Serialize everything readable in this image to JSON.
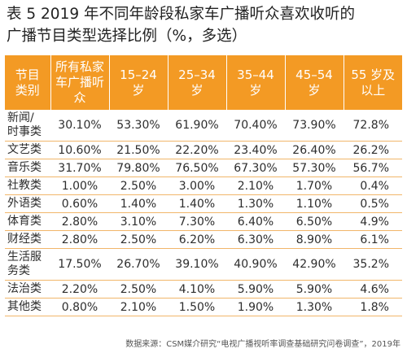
{
  "title": {
    "line1": "表 5  2019 年不同年龄段私家车广播听众喜欢收听的",
    "line2": "广播节目类型选择比例（%，多选）"
  },
  "table": {
    "headers": [
      [
        "节目",
        "类别"
      ],
      [
        "所有私家",
        "车广播听",
        "众"
      ],
      [
        "15–24",
        "岁"
      ],
      [
        "25–34",
        "岁"
      ],
      [
        "35–44",
        "岁"
      ],
      [
        "45–54",
        "岁"
      ],
      [
        "55 岁及",
        "以上"
      ]
    ],
    "rows": [
      {
        "category": [
          "新闻/",
          "时事类"
        ],
        "values": [
          "30.10%",
          "53.30%",
          "61.90%",
          "70.40%",
          "73.90%",
          "72.8%"
        ]
      },
      {
        "category": [
          "文艺类"
        ],
        "values": [
          "10.60%",
          "21.50%",
          "22.20%",
          "23.40%",
          "26.40%",
          "26.2%"
        ]
      },
      {
        "category": [
          "音乐类"
        ],
        "values": [
          "31.70%",
          "79.80%",
          "76.50%",
          "67.30%",
          "57.30%",
          "56.7%"
        ]
      },
      {
        "category": [
          "社教类"
        ],
        "values": [
          "1.00%",
          "2.50%",
          "3.00%",
          "2.10%",
          "1.70%",
          "0.4%"
        ]
      },
      {
        "category": [
          "外语类"
        ],
        "values": [
          "0.60%",
          "1.40%",
          "1.40%",
          "1.30%",
          "1.10%",
          "0.5%"
        ]
      },
      {
        "category": [
          "体育类"
        ],
        "values": [
          "2.80%",
          "3.10%",
          "7.30%",
          "6.40%",
          "6.50%",
          "4.9%"
        ]
      },
      {
        "category": [
          "财经类"
        ],
        "values": [
          "2.80%",
          "2.50%",
          "6.20%",
          "6.30%",
          "8.90%",
          "6.1%"
        ]
      },
      {
        "category": [
          "生活服",
          "务类"
        ],
        "values": [
          "17.50%",
          "26.70%",
          "39.10%",
          "40.90%",
          "42.90%",
          "35.2%"
        ]
      },
      {
        "category": [
          "法治类"
        ],
        "values": [
          "2.20%",
          "2.50%",
          "4.10%",
          "5.90%",
          "5.90%",
          "4.6%"
        ]
      },
      {
        "category": [
          "其他类"
        ],
        "values": [
          "0.80%",
          "2.10%",
          "1.50%",
          "1.90%",
          "1.30%",
          "1.8%"
        ]
      }
    ]
  },
  "source": "数据来源：CSM媒介研究“电视广播视听率调查基础研究问卷调查”，2019年"
}
